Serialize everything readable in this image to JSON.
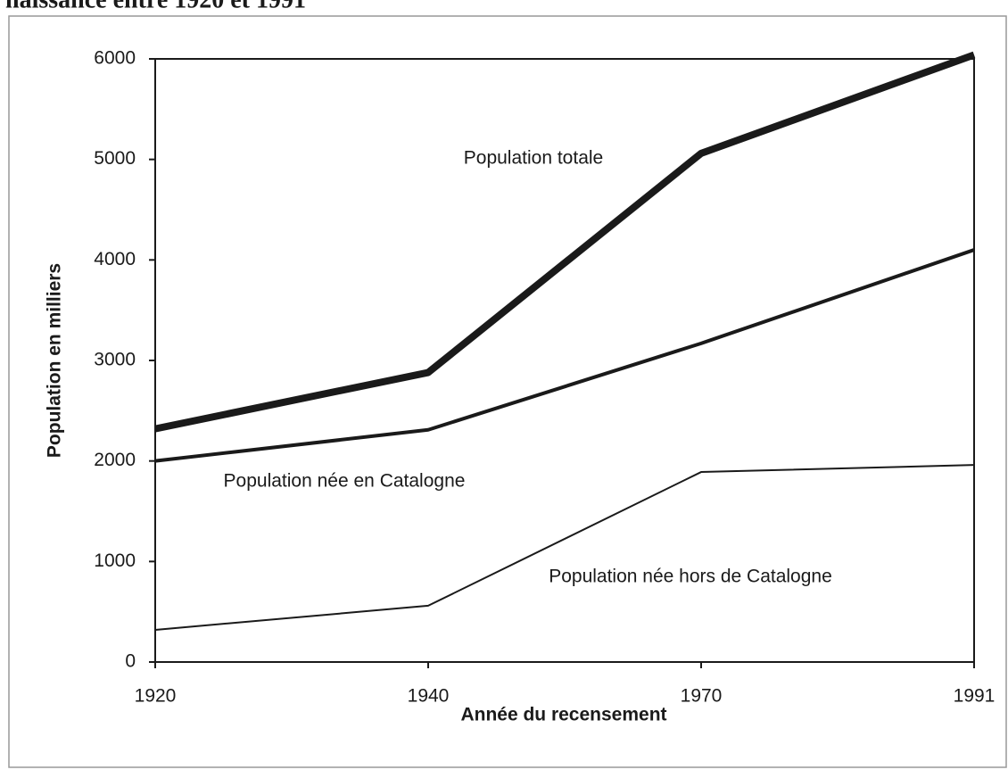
{
  "chart_data": {
    "type": "line",
    "title": "naissance entre 1920 et 1991",
    "x_label": "Année du recensement",
    "y_label": "Population en milliers",
    "categories": [
      "1920",
      "1940",
      "1970",
      "1991"
    ],
    "series": [
      {
        "name": "Population totale",
        "color": "#1a1a1a",
        "line_width": 8,
        "values": [
          2320,
          2880,
          5060,
          6040
        ]
      },
      {
        "name": "Population née en Catalogne",
        "color": "#1a1a1a",
        "line_width": 4,
        "values": [
          2000,
          2310,
          3170,
          4100
        ]
      },
      {
        "name": "Population née hors de Catalogne",
        "color": "#1a1a1a",
        "line_width": 2,
        "values": [
          320,
          560,
          1890,
          1960
        ]
      }
    ],
    "ylim": [
      0,
      6000
    ],
    "yticks": [
      0,
      1000,
      2000,
      3000,
      4000,
      5000,
      6000
    ],
    "grid": false
  }
}
